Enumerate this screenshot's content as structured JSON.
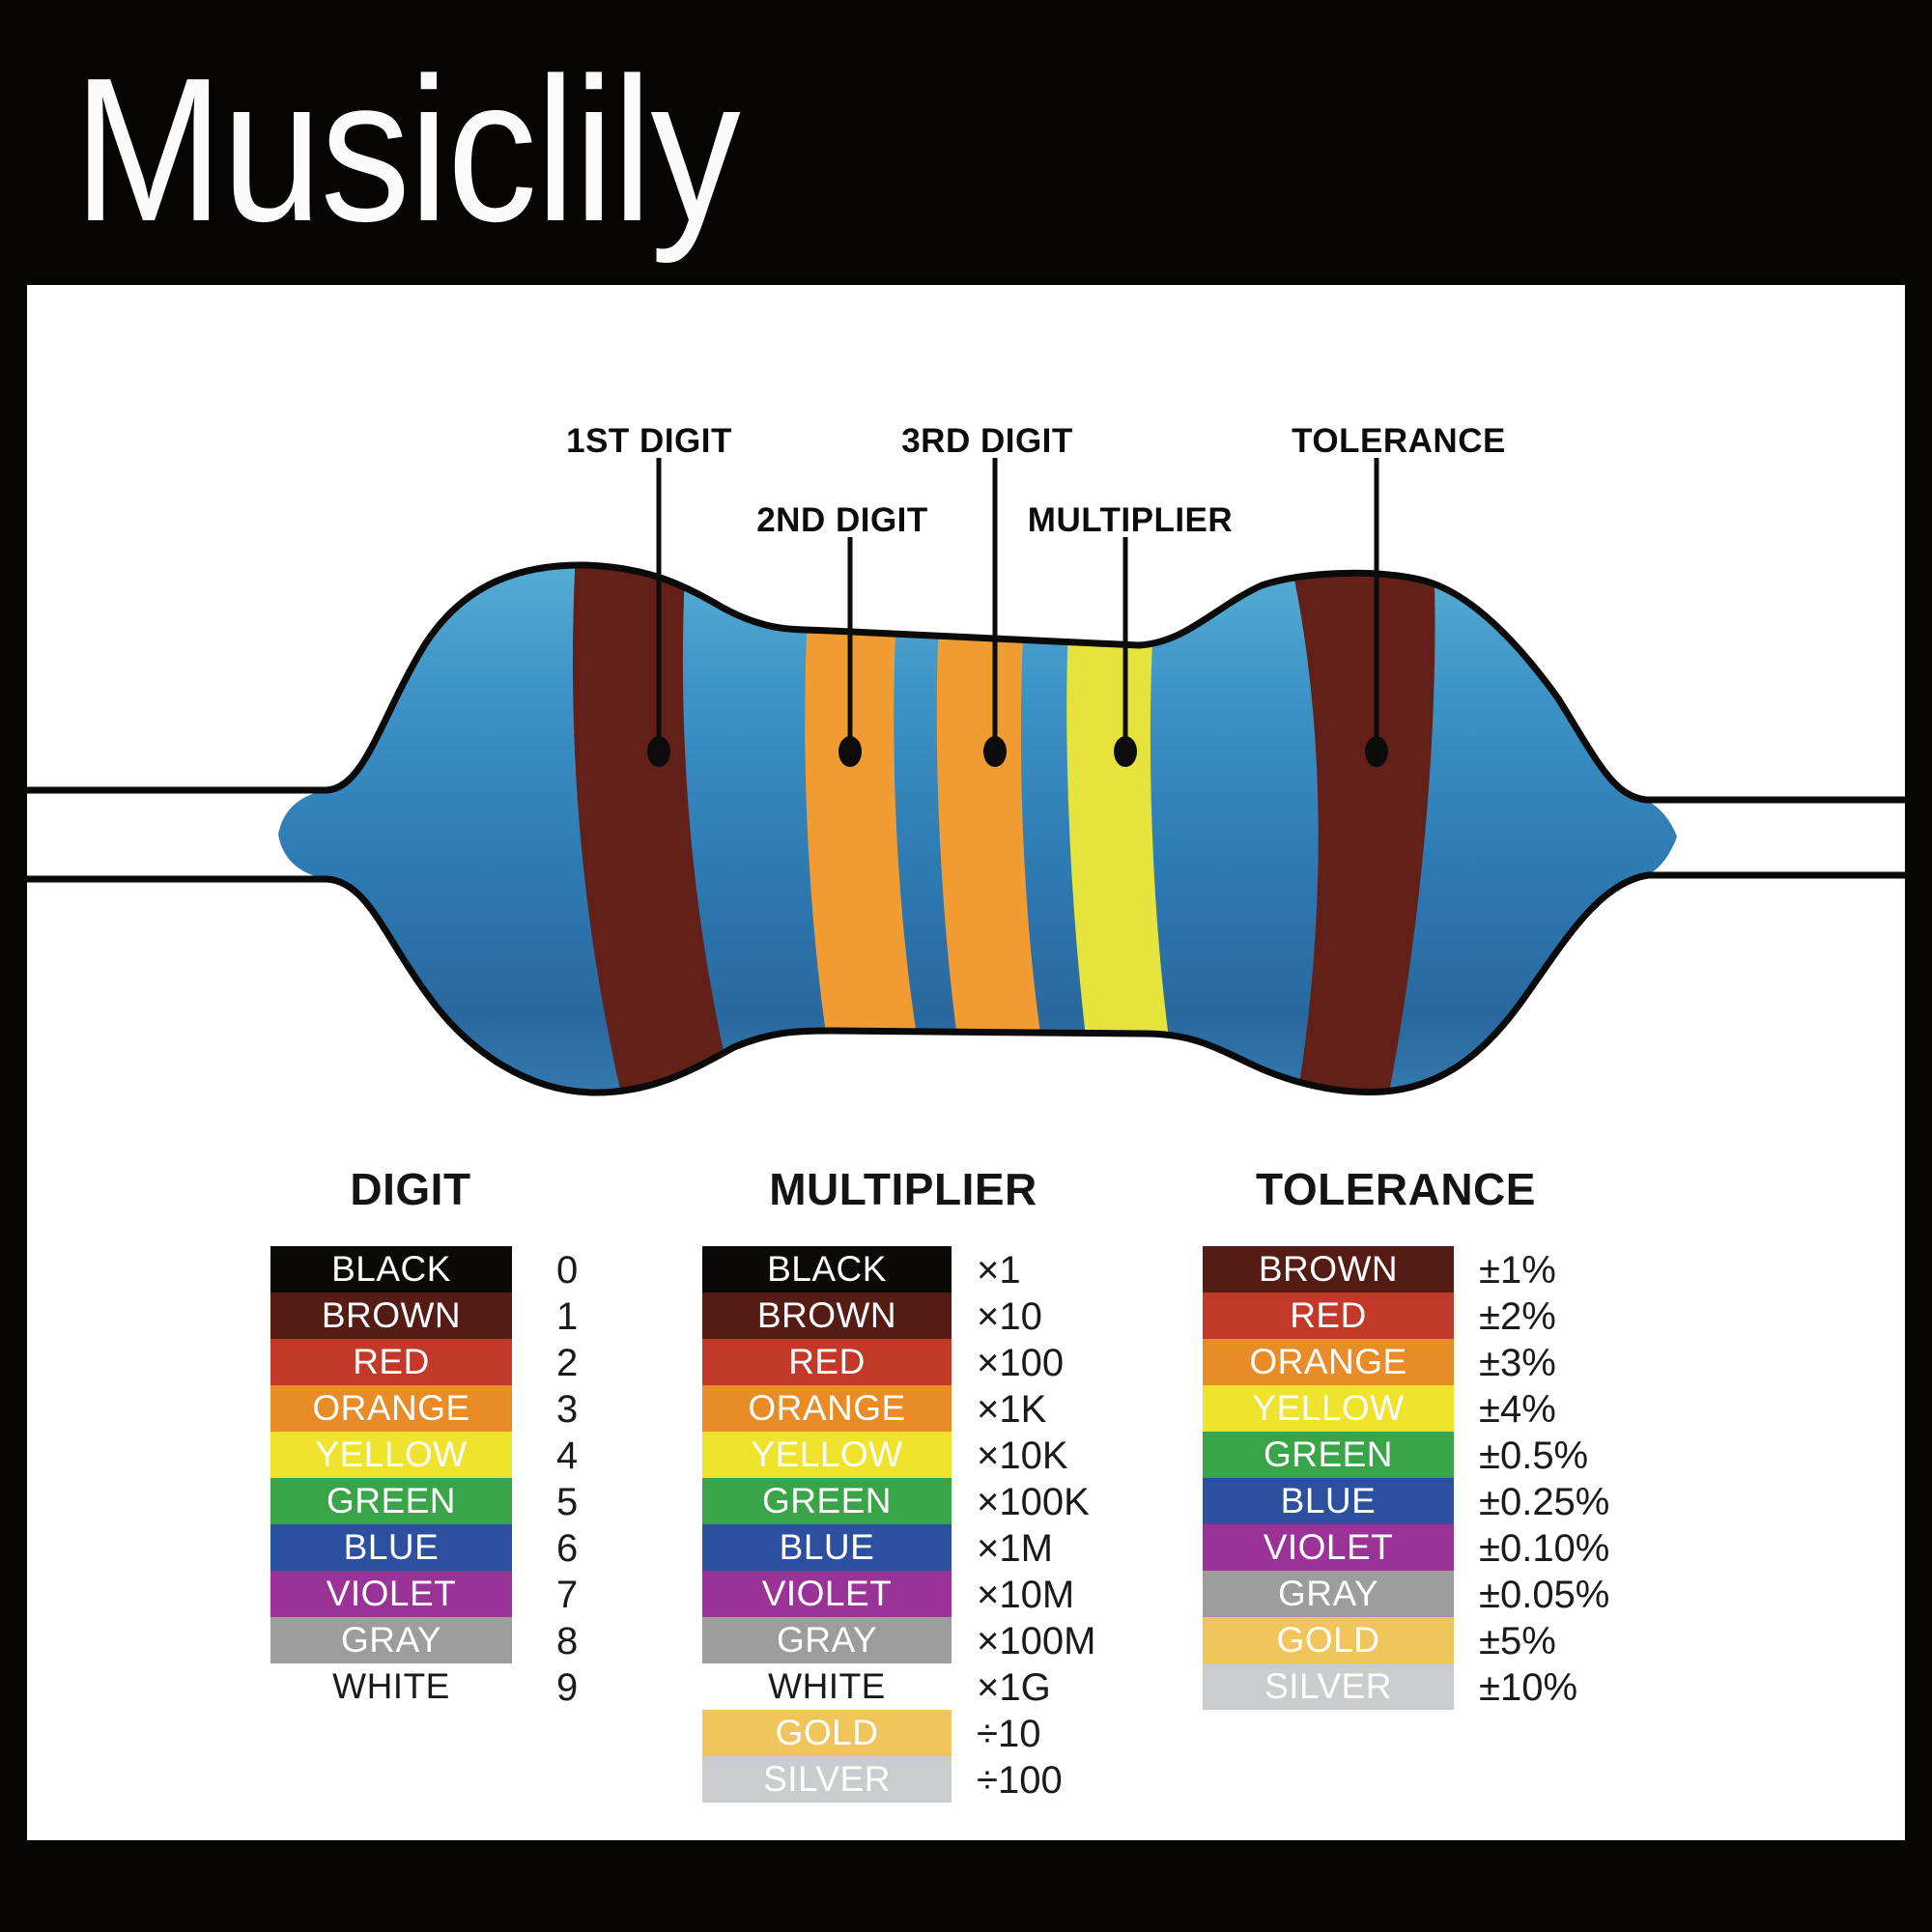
{
  "title": "Musiclily",
  "colors": {
    "background": "#070404",
    "panel": "#ffffff",
    "outline": "#0a0a0a",
    "body_top": "#58b0d6",
    "body_upper": "#3f96c8",
    "body_mid": "#2e7cb5",
    "body_lower": "#29689f",
    "body_bottom": "#3579ad",
    "band_brown": "#632019",
    "band_orange": "#f19c33",
    "band_yellow": "#e6e33c"
  },
  "resistor": {
    "bands": [
      "BROWN",
      "ORANGE",
      "ORANGE",
      "YELLOW",
      "BROWN"
    ],
    "labels": [
      {
        "text": "1ST DIGIT"
      },
      {
        "text": "2ND DIGIT"
      },
      {
        "text": "3RD DIGIT"
      },
      {
        "text": "MULTIPLIER"
      },
      {
        "text": "TOLERANCE"
      }
    ]
  },
  "tables": {
    "digit": {
      "header": "DIGIT",
      "rows": [
        {
          "name": "BLACK",
          "value": "0",
          "color": "#0c0a08",
          "text_color": "#ffffff"
        },
        {
          "name": "BROWN",
          "value": "1",
          "color": "#551c15",
          "text_color": "#ffffff"
        },
        {
          "name": "RED",
          "value": "2",
          "color": "#c33929",
          "text_color": "#ffffff"
        },
        {
          "name": "ORANGE",
          "value": "3",
          "color": "#e98b27",
          "text_color": "#ffffff"
        },
        {
          "name": "YELLOW",
          "value": "4",
          "color": "#f0e32d",
          "text_color": "#ffffff"
        },
        {
          "name": "GREEN",
          "value": "5",
          "color": "#3aa449",
          "text_color": "#ffffff"
        },
        {
          "name": "BLUE",
          "value": "6",
          "color": "#2c509f",
          "text_color": "#ffffff"
        },
        {
          "name": "VIOLET",
          "value": "7",
          "color": "#9b3298",
          "text_color": "#ffffff"
        },
        {
          "name": "GRAY",
          "value": "8",
          "color": "#9d9d9d",
          "text_color": "#ffffff"
        },
        {
          "name": "WHITE",
          "value": "9",
          "color": "",
          "text_color": "#1a1a1a"
        }
      ]
    },
    "multiplier": {
      "header": "MULTIPLIER",
      "rows": [
        {
          "name": "BLACK",
          "value": "×1",
          "color": "#0c0a08",
          "text_color": "#ffffff"
        },
        {
          "name": "BROWN",
          "value": "×10",
          "color": "#551c15",
          "text_color": "#ffffff"
        },
        {
          "name": "RED",
          "value": "×100",
          "color": "#c33929",
          "text_color": "#ffffff"
        },
        {
          "name": "ORANGE",
          "value": "×1K",
          "color": "#e98b27",
          "text_color": "#ffffff"
        },
        {
          "name": "YELLOW",
          "value": "×10K",
          "color": "#f0e32d",
          "text_color": "#ffffff"
        },
        {
          "name": "GREEN",
          "value": "×100K",
          "color": "#3aa449",
          "text_color": "#ffffff"
        },
        {
          "name": "BLUE",
          "value": "×1M",
          "color": "#2c509f",
          "text_color": "#ffffff"
        },
        {
          "name": "VIOLET",
          "value": "×10M",
          "color": "#9b3298",
          "text_color": "#ffffff"
        },
        {
          "name": "GRAY",
          "value": "×100M",
          "color": "#9d9d9d",
          "text_color": "#ffffff"
        },
        {
          "name": "WHITE",
          "value": "×1G",
          "color": "",
          "text_color": "#1a1a1a"
        },
        {
          "name": "GOLD",
          "value": "÷10",
          "color": "#efc55c",
          "text_color": "#ffffff"
        },
        {
          "name": "SILVER",
          "value": "÷100",
          "color": "#cbcccd",
          "text_color": "#ffffff"
        }
      ]
    },
    "tolerance": {
      "header": "TOLERANCE",
      "rows": [
        {
          "name": "BROWN",
          "value": "±1%",
          "color": "#551c15",
          "text_color": "#ffffff"
        },
        {
          "name": "RED",
          "value": "±2%",
          "color": "#c33929",
          "text_color": "#ffffff"
        },
        {
          "name": "ORANGE",
          "value": "±3%",
          "color": "#e98b27",
          "text_color": "#ffffff"
        },
        {
          "name": "YELLOW",
          "value": "±4%",
          "color": "#f0e32d",
          "text_color": "#ffffff"
        },
        {
          "name": "GREEN",
          "value": "±0.5%",
          "color": "#3aa449",
          "text_color": "#ffffff"
        },
        {
          "name": "BLUE",
          "value": "±0.25%",
          "color": "#2c509f",
          "text_color": "#ffffff"
        },
        {
          "name": "VIOLET",
          "value": "±0.10%",
          "color": "#9b3298",
          "text_color": "#ffffff"
        },
        {
          "name": "GRAY",
          "value": "±0.05%",
          "color": "#9d9d9d",
          "text_color": "#ffffff"
        },
        {
          "name": "GOLD",
          "value": "±5%",
          "color": "#efc55c",
          "text_color": "#ffffff"
        },
        {
          "name": "SILVER",
          "value": "±10%",
          "color": "#cbcccd",
          "text_color": "#ffffff"
        }
      ]
    }
  }
}
